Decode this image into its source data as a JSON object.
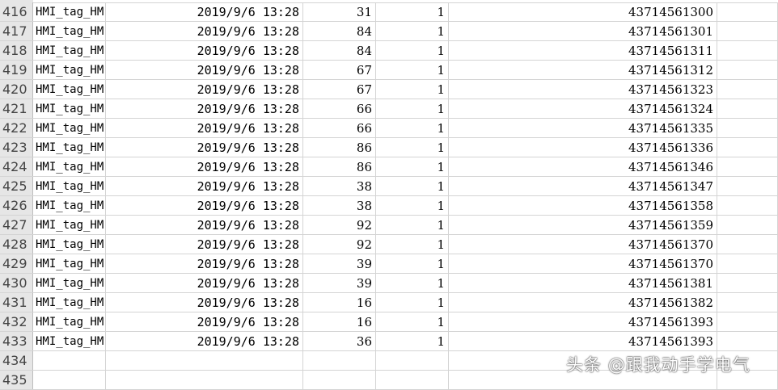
{
  "spreadsheet": {
    "rows": [
      {
        "row": "416",
        "tag": "HMI_tag_HM",
        "time": "2019/9/6 13:28",
        "value": "31",
        "flag": "1",
        "stamp": "43714561300"
      },
      {
        "row": "417",
        "tag": "HMI_tag_HM",
        "time": "2019/9/6 13:28",
        "value": "84",
        "flag": "1",
        "stamp": "43714561301"
      },
      {
        "row": "418",
        "tag": "HMI_tag_HM",
        "time": "2019/9/6 13:28",
        "value": "84",
        "flag": "1",
        "stamp": "43714561311"
      },
      {
        "row": "419",
        "tag": "HMI_tag_HM",
        "time": "2019/9/6 13:28",
        "value": "67",
        "flag": "1",
        "stamp": "43714561312"
      },
      {
        "row": "420",
        "tag": "HMI_tag_HM",
        "time": "2019/9/6 13:28",
        "value": "67",
        "flag": "1",
        "stamp": "43714561323"
      },
      {
        "row": "421",
        "tag": "HMI_tag_HM",
        "time": "2019/9/6 13:28",
        "value": "66",
        "flag": "1",
        "stamp": "43714561324"
      },
      {
        "row": "422",
        "tag": "HMI_tag_HM",
        "time": "2019/9/6 13:28",
        "value": "66",
        "flag": "1",
        "stamp": "43714561335"
      },
      {
        "row": "423",
        "tag": "HMI_tag_HM",
        "time": "2019/9/6 13:28",
        "value": "86",
        "flag": "1",
        "stamp": "43714561336"
      },
      {
        "row": "424",
        "tag": "HMI_tag_HM",
        "time": "2019/9/6 13:28",
        "value": "86",
        "flag": "1",
        "stamp": "43714561346"
      },
      {
        "row": "425",
        "tag": "HMI_tag_HM",
        "time": "2019/9/6 13:28",
        "value": "38",
        "flag": "1",
        "stamp": "43714561347"
      },
      {
        "row": "426",
        "tag": "HMI_tag_HM",
        "time": "2019/9/6 13:28",
        "value": "38",
        "flag": "1",
        "stamp": "43714561358"
      },
      {
        "row": "427",
        "tag": "HMI_tag_HM",
        "time": "2019/9/6 13:28",
        "value": "92",
        "flag": "1",
        "stamp": "43714561359"
      },
      {
        "row": "428",
        "tag": "HMI_tag_HM",
        "time": "2019/9/6 13:28",
        "value": "92",
        "flag": "1",
        "stamp": "43714561370"
      },
      {
        "row": "429",
        "tag": "HMI_tag_HM",
        "time": "2019/9/6 13:28",
        "value": "39",
        "flag": "1",
        "stamp": "43714561370"
      },
      {
        "row": "430",
        "tag": "HMI_tag_HM",
        "time": "2019/9/6 13:28",
        "value": "39",
        "flag": "1",
        "stamp": "43714561381"
      },
      {
        "row": "431",
        "tag": "HMI_tag_HM",
        "time": "2019/9/6 13:28",
        "value": "16",
        "flag": "1",
        "stamp": "43714561382"
      },
      {
        "row": "432",
        "tag": "HMI_tag_HM",
        "time": "2019/9/6 13:28",
        "value": "16",
        "flag": "1",
        "stamp": "43714561393"
      },
      {
        "row": "433",
        "tag": "HMI_tag_HM",
        "time": "2019/9/6 13:28",
        "value": "36",
        "flag": "1",
        "stamp": "43714561393"
      },
      {
        "row": "434",
        "tag": "",
        "time": "",
        "value": "",
        "flag": "",
        "stamp": ""
      },
      {
        "row": "435",
        "tag": "",
        "time": "",
        "value": "",
        "flag": "",
        "stamp": ""
      }
    ]
  },
  "watermark": "头条 @跟我动手学电气"
}
